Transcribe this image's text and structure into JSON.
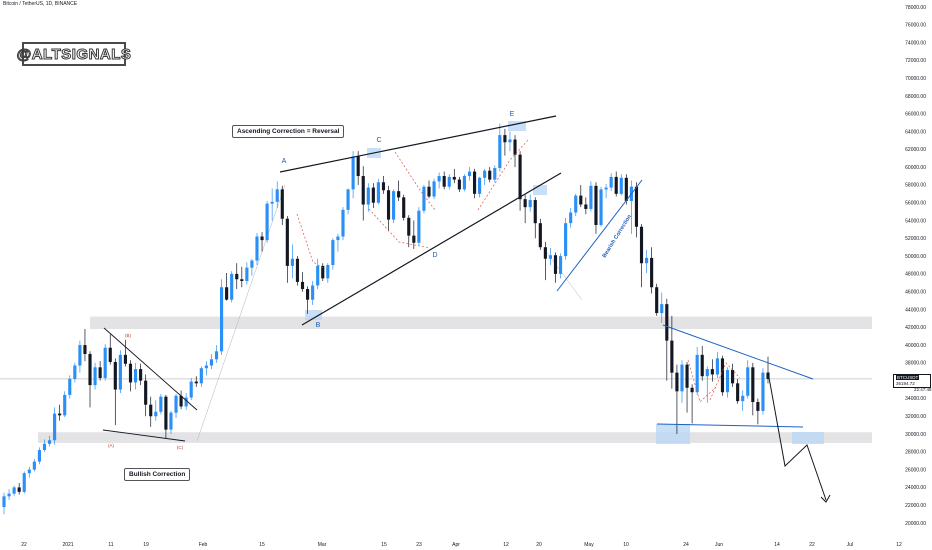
{
  "header": {
    "title": "Bitcoin / TetherUS, 1D, BINANCE"
  },
  "watermark": "@ALTSIGNALS",
  "callouts": {
    "ascending": "Ascending Correction = Reversal",
    "bullish": "Bullish Correction",
    "bearish": "Bearish Correction"
  },
  "wave_labels": [
    "A",
    "B",
    "C",
    "D",
    "E"
  ],
  "small_labels": [
    "(A)",
    "(B)",
    "(C)"
  ],
  "price_label": {
    "symbol": "BTCUSDT",
    "price": "36194.72",
    "countdown": "22:47:48"
  },
  "colors": {
    "up": "#2a8ff7",
    "down": "#131722",
    "zone": "#d9dadc",
    "trend_blue": "#1e62c4",
    "highlight": "#bcd7f5"
  },
  "chart_data": {
    "type": "candlestick",
    "title": "Bitcoin / TetherUS, 1D, BINANCE",
    "y_ticks": [
      20000,
      22000,
      24000,
      26000,
      28000,
      30000,
      32000,
      34000,
      36000,
      38000,
      40000,
      42000,
      44000,
      46000,
      48000,
      50000,
      52000,
      54000,
      56000,
      58000,
      60000,
      62000,
      64000,
      66000,
      68000,
      70000,
      72000,
      74000,
      76000,
      78000
    ],
    "y_tick_labels": [
      "20000.00",
      "22000.00",
      "24000.00",
      "26000.00",
      "28000.00",
      "30000.00",
      "32000.00",
      "34000.00",
      "36000.00",
      "38000.00",
      "40000.00",
      "42000.00",
      "44000.00",
      "46000.00",
      "48000.00",
      "50000.00",
      "52000.00",
      "54000.00",
      "56000.00",
      "58000.00",
      "60000.00",
      "62000.00",
      "64000.00",
      "66000.00",
      "68000.00",
      "70000.00",
      "72000.00",
      "74000.00",
      "76000.00",
      "78000.00"
    ],
    "ylim": [
      19500,
      79000
    ],
    "x_ticks": [
      "22",
      "2021",
      "11",
      "19",
      "Feb",
      "15",
      "Mar",
      "15",
      "23",
      "Apr",
      "12",
      "20",
      "May",
      "10",
      "24",
      "Jun",
      "14",
      "22",
      "Jul",
      "12"
    ],
    "current_price": 36194.72,
    "support_zones": [
      [
        29000,
        30200
      ],
      [
        41800,
        43200
      ]
    ],
    "candles": [
      [
        21800,
        23400,
        21000,
        23000
      ],
      [
        23000,
        23800,
        22600,
        23300
      ],
      [
        23300,
        24200,
        23000,
        24000
      ],
      [
        24000,
        24500,
        23200,
        23500
      ],
      [
        23500,
        25800,
        23300,
        25600
      ],
      [
        25600,
        26300,
        25100,
        26000
      ],
      [
        26000,
        27200,
        25800,
        26900
      ],
      [
        26900,
        28500,
        26600,
        28200
      ],
      [
        28200,
        29400,
        28000,
        28900
      ],
      [
        28900,
        29800,
        28600,
        29300
      ],
      [
        29300,
        33000,
        28800,
        32300
      ],
      [
        32300,
        33300,
        31500,
        32100
      ],
      [
        32100,
        34800,
        31900,
        34400
      ],
      [
        34400,
        36600,
        34000,
        36200
      ],
      [
        36200,
        38000,
        35800,
        37700
      ],
      [
        37700,
        40500,
        36900,
        40000
      ],
      [
        40000,
        41800,
        38200,
        39000
      ],
      [
        39000,
        39300,
        33000,
        35500
      ],
      [
        35500,
        38000,
        35000,
        37500
      ],
      [
        37500,
        38200,
        36000,
        36300
      ],
      [
        36300,
        40100,
        36000,
        39700
      ],
      [
        39700,
        41200,
        37800,
        38100
      ],
      [
        38100,
        38500,
        31000,
        35000
      ],
      [
        35000,
        39400,
        34600,
        38900
      ],
      [
        38900,
        40600,
        37600,
        37900
      ],
      [
        37900,
        38300,
        34800,
        35800
      ],
      [
        35800,
        38000,
        35000,
        37300
      ],
      [
        37300,
        37900,
        35500,
        36000
      ],
      [
        36000,
        36700,
        32000,
        33300
      ],
      [
        33300,
        34200,
        30800,
        32000
      ],
      [
        32000,
        33800,
        31500,
        32500
      ],
      [
        32500,
        34500,
        32200,
        34200
      ],
      [
        34200,
        34400,
        29500,
        30500
      ],
      [
        30500,
        32600,
        30000,
        32400
      ],
      [
        32400,
        34500,
        31800,
        34300
      ],
      [
        34300,
        34900,
        32800,
        33100
      ],
      [
        33100,
        34600,
        32700,
        34100
      ],
      [
        34100,
        36300,
        33800,
        35900
      ],
      [
        35900,
        36500,
        35300,
        35700
      ],
      [
        35700,
        37600,
        35300,
        37400
      ],
      [
        37400,
        38200,
        36600,
        37700
      ],
      [
        37700,
        39000,
        37300,
        38400
      ],
      [
        38400,
        40000,
        38000,
        39300
      ],
      [
        39300,
        47400,
        38900,
        46500
      ],
      [
        46500,
        48100,
        45000,
        45100
      ],
      [
        45100,
        48300,
        44800,
        48000
      ],
      [
        48000,
        49200,
        46300,
        47400
      ],
      [
        47400,
        48800,
        46500,
        47200
      ],
      [
        47200,
        49300,
        46800,
        48700
      ],
      [
        48700,
        49700,
        47800,
        49500
      ],
      [
        49500,
        52600,
        49000,
        52200
      ],
      [
        52200,
        52700,
        50500,
        51800
      ],
      [
        51800,
        56200,
        51500,
        55900
      ],
      [
        55900,
        57600,
        54000,
        56100
      ],
      [
        56100,
        58400,
        55400,
        57500
      ],
      [
        57500,
        57900,
        53500,
        54200
      ],
      [
        54200,
        54500,
        47000,
        48900
      ],
      [
        48900,
        51300,
        47500,
        49700
      ],
      [
        49700,
        50000,
        46700,
        47100
      ],
      [
        47100,
        48200,
        46000,
        46300
      ],
      [
        46300,
        46600,
        43500,
        45100
      ],
      [
        45100,
        47200,
        44500,
        46700
      ],
      [
        46700,
        49700,
        46300,
        48900
      ],
      [
        48900,
        49200,
        47200,
        47500
      ],
      [
        47500,
        49200,
        47000,
        49000
      ],
      [
        49000,
        52000,
        48500,
        51800
      ],
      [
        51800,
        52500,
        50500,
        52200
      ],
      [
        52200,
        55500,
        51800,
        55200
      ],
      [
        55200,
        57600,
        54700,
        57500
      ],
      [
        57500,
        61800,
        56500,
        61200
      ],
      [
        61200,
        61800,
        58000,
        59000
      ],
      [
        59000,
        60100,
        54000,
        55800
      ],
      [
        55800,
        58200,
        55000,
        57700
      ],
      [
        57700,
        58200,
        55400,
        56000
      ],
      [
        56000,
        58700,
        55800,
        58300
      ],
      [
        58300,
        59000,
        57000,
        57400
      ],
      [
        57400,
        57900,
        52800,
        54100
      ],
      [
        54100,
        57500,
        53700,
        57300
      ],
      [
        57300,
        58500,
        56200,
        56600
      ],
      [
        56600,
        56900,
        54000,
        54300
      ],
      [
        54300,
        54600,
        51000,
        52300
      ],
      [
        52300,
        54000,
        50800,
        51500
      ],
      [
        51500,
        55500,
        51200,
        55100
      ],
      [
        55100,
        58000,
        54800,
        57800
      ],
      [
        57800,
        58500,
        56500,
        56700
      ],
      [
        56700,
        58700,
        56400,
        58400
      ],
      [
        58400,
        59400,
        57600,
        59000
      ],
      [
        59000,
        59500,
        57500,
        57800
      ],
      [
        57800,
        59200,
        57500,
        58900
      ],
      [
        58900,
        59800,
        58200,
        58600
      ],
      [
        58600,
        58900,
        57200,
        57500
      ],
      [
        57500,
        59200,
        57300,
        59000
      ],
      [
        59000,
        60000,
        58500,
        59500
      ],
      [
        59500,
        59800,
        56500,
        57000
      ],
      [
        57000,
        58900,
        56600,
        58800
      ],
      [
        58800,
        59800,
        58000,
        59600
      ],
      [
        59600,
        60000,
        58300,
        58600
      ],
      [
        58600,
        60200,
        58300,
        59900
      ],
      [
        59900,
        64900,
        59500,
        63600
      ],
      [
        63600,
        64300,
        61300,
        62800
      ],
      [
        62800,
        64000,
        61800,
        63100
      ],
      [
        63100,
        63600,
        60000,
        61400
      ],
      [
        61400,
        61800,
        55100,
        56400
      ],
      [
        56400,
        56900,
        53700,
        55500
      ],
      [
        55500,
        56900,
        55000,
        56300
      ],
      [
        56300,
        56600,
        52000,
        53700
      ],
      [
        53700,
        54200,
        50700,
        51000
      ],
      [
        51000,
        51600,
        47300,
        49700
      ],
      [
        49700,
        50900,
        49000,
        50100
      ],
      [
        50100,
        50400,
        47000,
        48000
      ],
      [
        48000,
        50300,
        47500,
        50000
      ],
      [
        50000,
        54300,
        49600,
        53700
      ],
      [
        53700,
        55400,
        53200,
        54900
      ],
      [
        54900,
        57000,
        54500,
        56800
      ],
      [
        56800,
        58000,
        55500,
        55800
      ],
      [
        55800,
        56600,
        54700,
        55300
      ],
      [
        55300,
        58400,
        55000,
        57900
      ],
      [
        57900,
        58300,
        52500,
        53500
      ],
      [
        53500,
        57800,
        53300,
        57500
      ],
      [
        57500,
        58100,
        56500,
        57700
      ],
      [
        57700,
        59300,
        57300,
        58900
      ],
      [
        58900,
        59500,
        56700,
        57000
      ],
      [
        57000,
        59200,
        56800,
        58800
      ],
      [
        58800,
        59200,
        55800,
        56200
      ],
      [
        56200,
        58500,
        52500,
        57800
      ],
      [
        57800,
        58300,
        52100,
        53300
      ],
      [
        53300,
        53600,
        46500,
        49200
      ],
      [
        49200,
        50700,
        48100,
        49800
      ],
      [
        49800,
        51000,
        45800,
        46500
      ],
      [
        46500,
        46900,
        43300,
        43600
      ],
      [
        43600,
        45900,
        42500,
        44600
      ],
      [
        44600,
        45200,
        36000,
        40500
      ],
      [
        40500,
        43300,
        35100,
        36900
      ],
      [
        36900,
        37800,
        30000,
        34800
      ],
      [
        34800,
        38300,
        33500,
        37800
      ],
      [
        37800,
        38100,
        32400,
        35200
      ],
      [
        35200,
        35600,
        31200,
        34700
      ],
      [
        34700,
        39800,
        34400,
        38900
      ],
      [
        38900,
        39900,
        36000,
        36500
      ],
      [
        36500,
        37600,
        33500,
        37300
      ],
      [
        37300,
        38400,
        35900,
        36700
      ],
      [
        36700,
        39200,
        36300,
        38500
      ],
      [
        38500,
        38800,
        34300,
        34700
      ],
      [
        34700,
        37500,
        34100,
        37200
      ],
      [
        37200,
        37900,
        35300,
        35700
      ],
      [
        35700,
        36200,
        33400,
        33700
      ],
      [
        33700,
        34900,
        32600,
        34300
      ],
      [
        34300,
        38300,
        34000,
        37500
      ],
      [
        37500,
        38000,
        32100,
        33600
      ],
      [
        33600,
        34000,
        31100,
        32600
      ],
      [
        32600,
        37400,
        32200,
        36900
      ],
      [
        36900,
        38700,
        35700,
        36194
      ]
    ]
  }
}
